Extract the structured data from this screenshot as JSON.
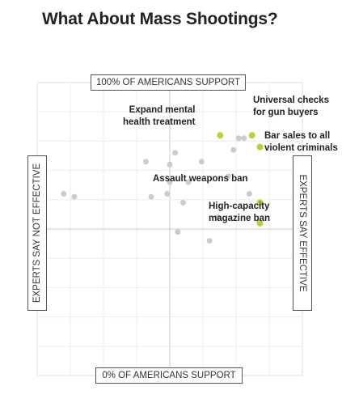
{
  "title": "What About Mass Shootings?",
  "chart_data": {
    "type": "scatter",
    "title": "What About Mass Shootings?",
    "axes": {
      "top": "100% OF AMERICANS SUPPORT",
      "bottom": "0% OF AMERICANS SUPPORT",
      "left": "EXPERTS SAY NOT EFFECTIVE",
      "right": "EXPERTS SAY EFFECTIVE"
    },
    "x_meaning": "expert-rated effectiveness (0 = not effective, 1 = effective)",
    "y_meaning": "share of Americans who support (0% to 100%)",
    "xlim": [
      0,
      1
    ],
    "ylim": [
      0,
      100
    ],
    "grid": true,
    "highlight_color": "#b5d334",
    "other_color": "#cccccc",
    "points": [
      {
        "x": 0.69,
        "y": 82,
        "label": "Expand mental\nhealth treatment",
        "highlight": true
      },
      {
        "x": 0.81,
        "y": 82,
        "label": "Universal checks\nfor gun buyers",
        "highlight": true
      },
      {
        "x": 0.84,
        "y": 78,
        "label": "Bar sales to all\nviolent criminals",
        "highlight": true
      },
      {
        "x": 0.84,
        "y": 59,
        "label": "Assault weapons ban",
        "highlight": true
      },
      {
        "x": 0.84,
        "y": 52,
        "label": "High-capacity\nmagazine ban",
        "highlight": true
      },
      {
        "x": 0.76,
        "y": 81,
        "highlight": false
      },
      {
        "x": 0.78,
        "y": 81,
        "highlight": false
      },
      {
        "x": 0.74,
        "y": 77,
        "highlight": false
      },
      {
        "x": 0.52,
        "y": 76,
        "highlight": false
      },
      {
        "x": 0.41,
        "y": 73,
        "highlight": false
      },
      {
        "x": 0.62,
        "y": 73,
        "highlight": false
      },
      {
        "x": 0.5,
        "y": 72,
        "highlight": false
      },
      {
        "x": 0.72,
        "y": 68,
        "highlight": false
      },
      {
        "x": 0.5,
        "y": 66,
        "highlight": false
      },
      {
        "x": 0.57,
        "y": 66,
        "highlight": false
      },
      {
        "x": 0.49,
        "y": 62,
        "highlight": false
      },
      {
        "x": 0.8,
        "y": 62,
        "highlight": false
      },
      {
        "x": 0.1,
        "y": 62,
        "highlight": false
      },
      {
        "x": 0.14,
        "y": 61,
        "highlight": false
      },
      {
        "x": 0.43,
        "y": 61,
        "highlight": false
      },
      {
        "x": 0.55,
        "y": 59,
        "highlight": false
      },
      {
        "x": 0.68,
        "y": 54,
        "highlight": false
      },
      {
        "x": 0.53,
        "y": 49,
        "highlight": false
      },
      {
        "x": 0.65,
        "y": 46,
        "highlight": false
      }
    ]
  }
}
